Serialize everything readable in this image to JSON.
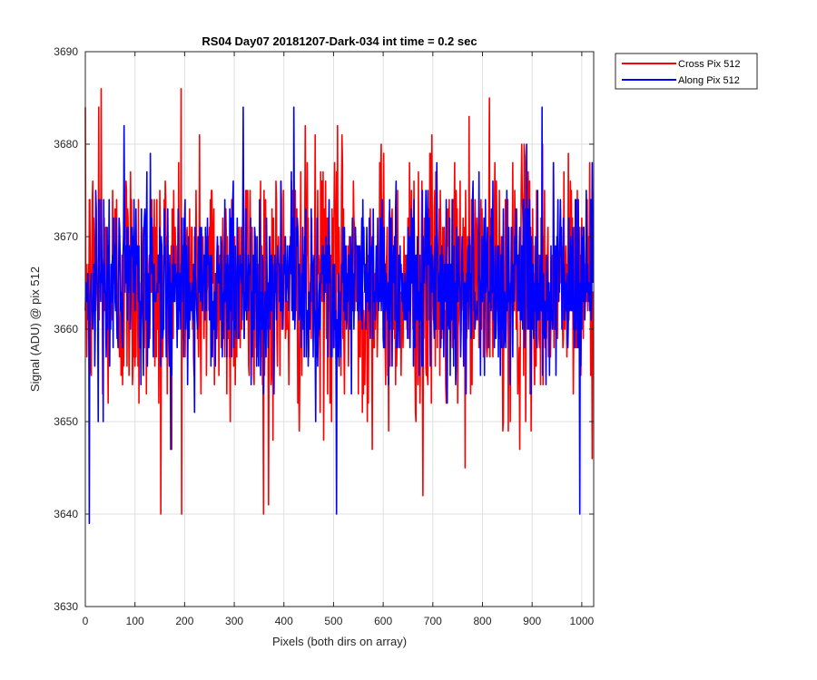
{
  "chart_data": {
    "type": "line",
    "title": "RS04 Day07 20181207-Dark-034 int time = 0.2 sec",
    "xlabel": "Pixels (both dirs on array)",
    "ylabel": "Signal (ADU) @ pix 512",
    "xlim": [
      0,
      1024
    ],
    "ylim": [
      3630,
      3690
    ],
    "xticks": [
      0,
      100,
      200,
      300,
      400,
      500,
      600,
      700,
      800,
      900,
      1000
    ],
    "yticks": [
      3630,
      3640,
      3650,
      3660,
      3670,
      3680,
      3690
    ],
    "xtick_labels": [
      "0",
      "100",
      "200",
      "300",
      "400",
      "500",
      "600",
      "700",
      "800",
      "900",
      "1000"
    ],
    "ytick_labels": [
      "3630",
      "3640",
      "3650",
      "3660",
      "3670",
      "3680",
      "3690"
    ],
    "grid": true,
    "legend_position": "outside-top-right",
    "series": [
      {
        "name": "Cross Pix 512",
        "color": "#ff0000",
        "n_points": 1024,
        "mean": 3665,
        "stdev": 7.0,
        "min": 3640,
        "max": 3686,
        "peaks": [
          [
            32,
            3686
          ],
          [
            193,
            3686
          ],
          [
            152,
            3640
          ],
          [
            369,
            3641
          ],
          [
            680,
            3642
          ],
          [
            27,
            3684
          ]
        ]
      },
      {
        "name": "Along Pix 512",
        "color": "#0000ff",
        "n_points": 1024,
        "mean": 3665,
        "stdev": 5.0,
        "min": 3639,
        "max": 3684,
        "peaks": [
          [
            8,
            3639
          ],
          [
            318,
            3684
          ],
          [
            420,
            3684
          ],
          [
            920,
            3684
          ],
          [
            506,
            3640
          ],
          [
            996,
            3640
          ]
        ]
      }
    ]
  }
}
